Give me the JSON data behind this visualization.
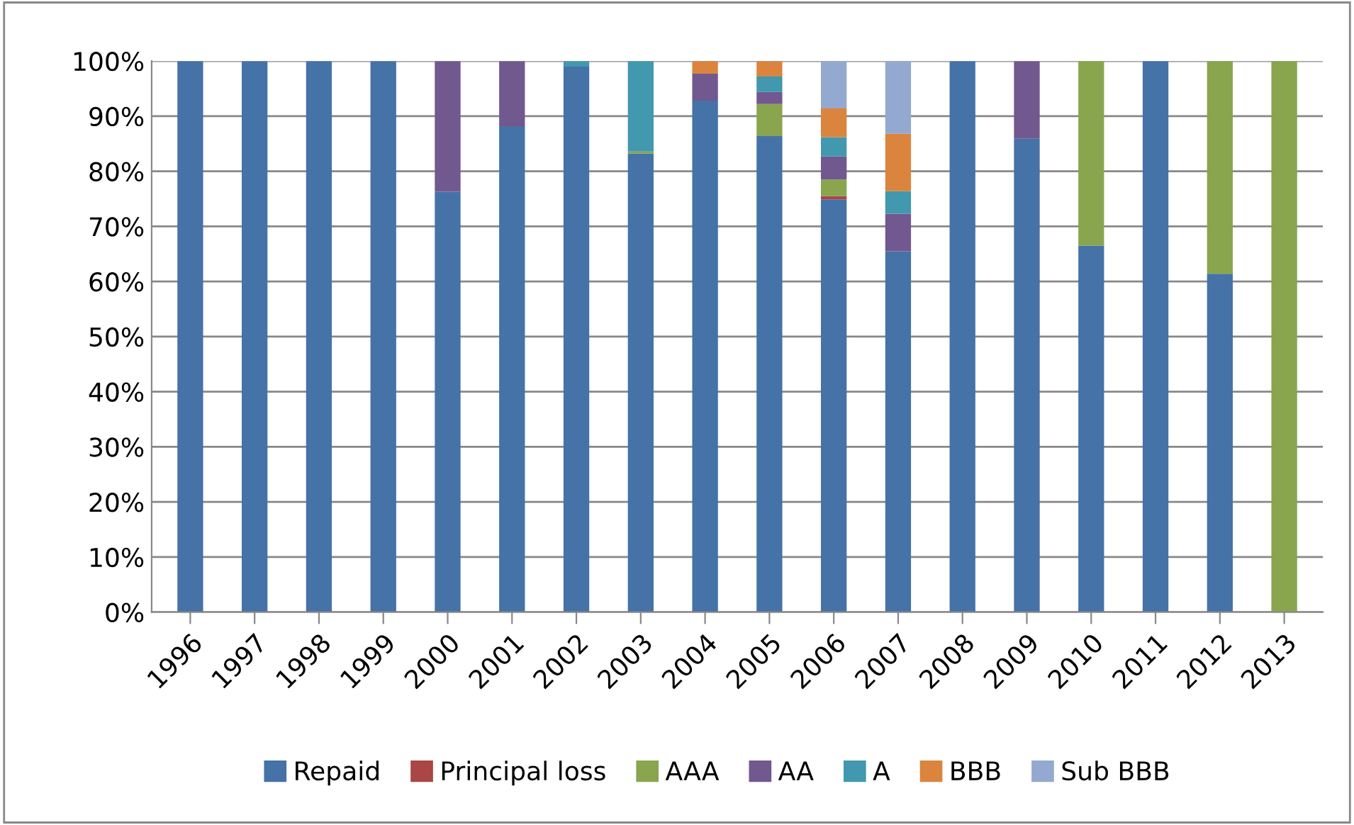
{
  "chart_data": {
    "type": "bar",
    "stacked": true,
    "categories": [
      "1996",
      "1997",
      "1998",
      "1999",
      "2000",
      "2001",
      "2002",
      "2003",
      "2004",
      "2005",
      "2006",
      "2007",
      "2008",
      "2009",
      "2010",
      "2011",
      "2012",
      "2013"
    ],
    "series": [
      {
        "name": "Repaid",
        "color": "#4572a7",
        "values": [
          100,
          100,
          100,
          100,
          76.3,
          88.2,
          99,
          83.2,
          92.8,
          86.4,
          74.9,
          65.5,
          100,
          85.9,
          66.5,
          100,
          61.4,
          0
        ]
      },
      {
        "name": "Principal loss",
        "color": "#aa4643",
        "values": [
          0,
          0,
          0,
          0,
          0,
          0,
          0,
          0,
          0,
          0,
          0.6,
          0,
          0,
          0,
          0,
          0,
          0,
          0
        ]
      },
      {
        "name": "AAA",
        "color": "#89a54e",
        "values": [
          0,
          0,
          0,
          0,
          0,
          0,
          0,
          0.4,
          0,
          5.8,
          3,
          0,
          0,
          0,
          33.5,
          0,
          38.6,
          100
        ]
      },
      {
        "name": "AA",
        "color": "#71588f",
        "values": [
          0,
          0,
          0,
          0,
          23.7,
          11.8,
          0,
          0,
          4.9,
          2.2,
          4.2,
          6.8,
          0,
          14.1,
          0,
          0,
          0,
          0
        ]
      },
      {
        "name": "A",
        "color": "#4198af",
        "values": [
          0,
          0,
          0,
          0,
          0,
          0,
          1,
          16.4,
          0,
          2.8,
          3.5,
          4.1,
          0,
          0,
          0,
          0,
          0,
          0
        ]
      },
      {
        "name": "BBB",
        "color": "#db843d",
        "values": [
          0,
          0,
          0,
          0,
          0,
          0,
          0,
          0,
          2.3,
          2.8,
          5.2,
          10.4,
          0,
          0,
          0,
          0,
          0,
          0
        ]
      },
      {
        "name": "Sub BBB",
        "color": "#93a9cf",
        "values": [
          0,
          0,
          0,
          0,
          0,
          0,
          0,
          0,
          0,
          0,
          8.6,
          13.2,
          0,
          0,
          0,
          0,
          0,
          0
        ]
      }
    ],
    "ylim": [
      0,
      100
    ],
    "yticks": [
      {
        "value": 0,
        "label": "0%"
      },
      {
        "value": 10,
        "label": "10%"
      },
      {
        "value": 20,
        "label": "20%"
      },
      {
        "value": 30,
        "label": "30%"
      },
      {
        "value": 40,
        "label": "40%"
      },
      {
        "value": 50,
        "label": "50%"
      },
      {
        "value": 60,
        "label": "60%"
      },
      {
        "value": 70,
        "label": "70%"
      },
      {
        "value": 80,
        "label": "80%"
      },
      {
        "value": 90,
        "label": "90%"
      },
      {
        "value": 100,
        "label": "100%"
      }
    ],
    "grid": "y",
    "legend": "bottom"
  }
}
